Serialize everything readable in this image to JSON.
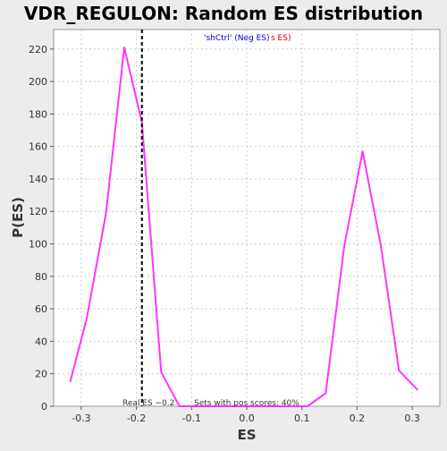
{
  "chart_data": {
    "type": "line",
    "title": "VDR_REGULON: Random ES distribution",
    "xlabel": "ES",
    "ylabel": "P(ES)",
    "xlim": [
      -0.35,
      0.35
    ],
    "ylim": [
      0,
      232
    ],
    "x_ticks": [
      -0.3,
      -0.2,
      -0.1,
      0.0,
      0.1,
      0.2,
      0.3
    ],
    "y_ticks": [
      0,
      20,
      40,
      60,
      80,
      100,
      120,
      140,
      160,
      180,
      200,
      220
    ],
    "grid": true,
    "series": [
      {
        "color": "#ff33ff",
        "x": [
          -0.32,
          -0.29,
          -0.255,
          -0.222,
          -0.19,
          -0.155,
          -0.122,
          -0.09,
          -0.056,
          -0.024,
          0.01,
          0.043,
          0.076,
          0.11,
          0.143,
          0.177,
          0.21,
          0.243,
          0.276,
          0.31
        ],
        "y": [
          15,
          54,
          119,
          221,
          175,
          21,
          0,
          0,
          0,
          0,
          0,
          0,
          0,
          0,
          8,
          99,
          157,
          99,
          22,
          10
        ]
      }
    ],
    "real_es": {
      "value": -0.19,
      "label": "Real ES −0.2"
    },
    "annotations": {
      "pos_scores": "Sets with pos scores: 40%",
      "legend_prefix": "'shCtrl' (Neg ES)",
      "legend_suffix": "s ES)"
    },
    "colors": {
      "background": "#ececec",
      "plot_area": "#ffffff",
      "grid": "#cccccc",
      "legend_neg": "#0000cc",
      "legend_pos": "#cc0000"
    }
  }
}
